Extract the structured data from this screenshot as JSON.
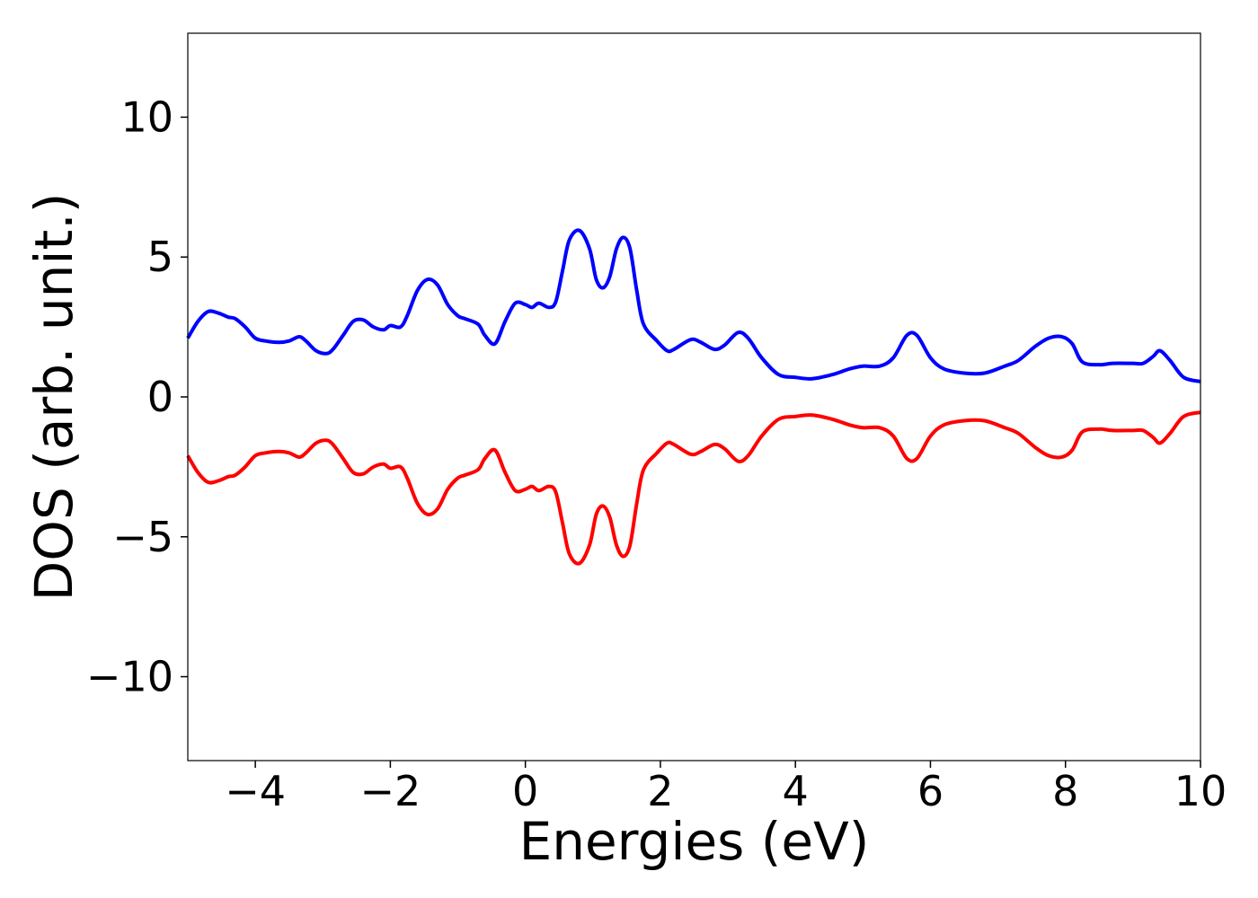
{
  "chart_data": {
    "type": "line",
    "title": "",
    "xlabel": "Energies (eV)",
    "ylabel": "DOS (arb. unit.)",
    "xlim": [
      -5,
      10
    ],
    "ylim": [
      -13,
      13
    ],
    "x_ticks": [
      -4,
      -2,
      0,
      2,
      4,
      6,
      8,
      10
    ],
    "x_tick_labels": [
      "−4",
      "−2",
      "0",
      "2",
      "4",
      "6",
      "8",
      "10"
    ],
    "y_ticks": [
      -10,
      -5,
      0,
      5,
      10
    ],
    "y_tick_labels": [
      "−10",
      "−5",
      "0",
      "5",
      "10"
    ],
    "grid": false,
    "legend": "none",
    "colors": {
      "spin_up": "#0000ff",
      "spin_down": "#ff0000"
    },
    "series": [
      {
        "color": "#0000ff",
        "x": [
          -5.0,
          -4.85,
          -4.7,
          -4.55,
          -4.4,
          -4.3,
          -4.15,
          -4.0,
          -3.85,
          -3.65,
          -3.5,
          -3.35,
          -3.25,
          -3.1,
          -2.95,
          -2.85,
          -2.7,
          -2.55,
          -2.4,
          -2.25,
          -2.1,
          -2.0,
          -1.85,
          -1.75,
          -1.6,
          -1.45,
          -1.3,
          -1.15,
          -1.0,
          -0.9,
          -0.7,
          -0.6,
          -0.45,
          -0.3,
          -0.15,
          0.0,
          0.1,
          0.2,
          0.35,
          0.45,
          0.55,
          0.65,
          0.8,
          0.95,
          1.05,
          1.15,
          1.25,
          1.35,
          1.45,
          1.55,
          1.65,
          1.75,
          1.95,
          2.1,
          2.2,
          2.45,
          2.6,
          2.8,
          2.95,
          3.15,
          3.3,
          3.5,
          3.75,
          4.0,
          4.25,
          4.55,
          4.8,
          5.0,
          5.25,
          5.45,
          5.65,
          5.8,
          6.0,
          6.2,
          6.5,
          6.8,
          7.1,
          7.3,
          7.55,
          7.75,
          7.95,
          8.1,
          8.25,
          8.5,
          8.7,
          9.0,
          9.15,
          9.3,
          9.4,
          9.55,
          9.75,
          10.0
        ],
        "y": [
          2.1,
          2.7,
          3.05,
          3.0,
          2.85,
          2.8,
          2.5,
          2.1,
          2.0,
          1.95,
          2.0,
          2.15,
          2.0,
          1.65,
          1.55,
          1.7,
          2.2,
          2.7,
          2.75,
          2.5,
          2.4,
          2.55,
          2.5,
          2.9,
          3.8,
          4.2,
          4.0,
          3.3,
          2.9,
          2.8,
          2.6,
          2.2,
          1.9,
          2.7,
          3.35,
          3.3,
          3.2,
          3.35,
          3.2,
          3.4,
          4.5,
          5.6,
          5.95,
          5.3,
          4.2,
          3.9,
          4.3,
          5.3,
          5.7,
          5.3,
          3.8,
          2.6,
          2.0,
          1.65,
          1.7,
          2.05,
          1.95,
          1.7,
          1.85,
          2.3,
          2.1,
          1.4,
          0.8,
          0.7,
          0.65,
          0.8,
          1.0,
          1.1,
          1.1,
          1.4,
          2.2,
          2.2,
          1.4,
          1.0,
          0.85,
          0.85,
          1.1,
          1.3,
          1.8,
          2.1,
          2.15,
          1.9,
          1.25,
          1.15,
          1.2,
          1.2,
          1.2,
          1.45,
          1.65,
          1.3,
          0.7,
          0.55
        ]
      },
      {
        "color": "#ff0000",
        "x": [
          -5.0,
          -4.85,
          -4.7,
          -4.55,
          -4.4,
          -4.3,
          -4.15,
          -4.0,
          -3.85,
          -3.65,
          -3.5,
          -3.35,
          -3.25,
          -3.1,
          -2.95,
          -2.85,
          -2.7,
          -2.55,
          -2.4,
          -2.25,
          -2.1,
          -2.0,
          -1.85,
          -1.75,
          -1.6,
          -1.45,
          -1.3,
          -1.15,
          -1.0,
          -0.9,
          -0.7,
          -0.6,
          -0.45,
          -0.3,
          -0.15,
          0.0,
          0.1,
          0.2,
          0.35,
          0.45,
          0.55,
          0.65,
          0.8,
          0.95,
          1.05,
          1.15,
          1.25,
          1.35,
          1.45,
          1.55,
          1.65,
          1.75,
          1.95,
          2.1,
          2.2,
          2.45,
          2.6,
          2.8,
          2.95,
          3.15,
          3.3,
          3.5,
          3.75,
          4.0,
          4.25,
          4.55,
          4.8,
          5.0,
          5.25,
          5.45,
          5.65,
          5.8,
          6.0,
          6.2,
          6.5,
          6.8,
          7.1,
          7.3,
          7.55,
          7.75,
          7.95,
          8.1,
          8.25,
          8.5,
          8.7,
          9.0,
          9.15,
          9.3,
          9.4,
          9.55,
          9.75,
          10.0
        ],
        "y": [
          -2.1,
          -2.7,
          -3.05,
          -3.0,
          -2.85,
          -2.8,
          -2.5,
          -2.1,
          -2.0,
          -1.95,
          -2.0,
          -2.15,
          -2.0,
          -1.65,
          -1.55,
          -1.7,
          -2.2,
          -2.7,
          -2.75,
          -2.5,
          -2.4,
          -2.55,
          -2.5,
          -2.9,
          -3.8,
          -4.2,
          -4.0,
          -3.3,
          -2.9,
          -2.8,
          -2.6,
          -2.2,
          -1.9,
          -2.7,
          -3.35,
          -3.3,
          -3.2,
          -3.35,
          -3.2,
          -3.4,
          -4.5,
          -5.6,
          -5.95,
          -5.3,
          -4.2,
          -3.9,
          -4.3,
          -5.3,
          -5.7,
          -5.3,
          -3.8,
          -2.6,
          -2.0,
          -1.65,
          -1.7,
          -2.05,
          -1.95,
          -1.7,
          -1.85,
          -2.3,
          -2.1,
          -1.4,
          -0.8,
          -0.7,
          -0.65,
          -0.8,
          -1.0,
          -1.1,
          -1.1,
          -1.4,
          -2.2,
          -2.2,
          -1.4,
          -1.0,
          -0.85,
          -0.85,
          -1.1,
          -1.3,
          -1.8,
          -2.1,
          -2.15,
          -1.9,
          -1.25,
          -1.15,
          -1.2,
          -1.2,
          -1.2,
          -1.45,
          -1.65,
          -1.3,
          -0.7,
          -0.55
        ]
      }
    ]
  }
}
